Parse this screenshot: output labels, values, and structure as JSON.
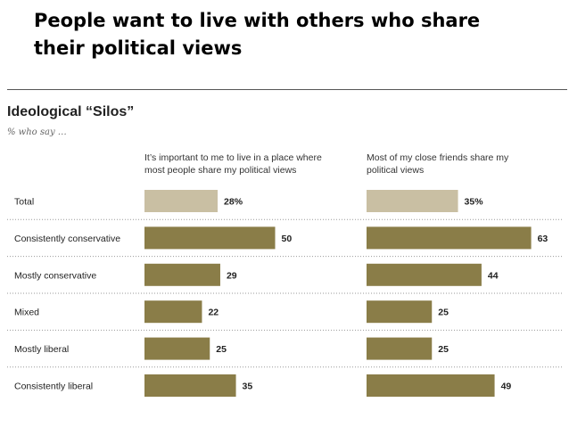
{
  "slide": {
    "title": "People want to live with others who share their political views"
  },
  "chart_data": {
    "type": "bar",
    "orientation": "horizontal",
    "title": "Ideological “Silos”",
    "subtitle": "% who say …",
    "categories": [
      "Total",
      "Consistently conservative",
      "Mostly conservative",
      "Mixed",
      "Mostly liberal",
      "Consistently liberal"
    ],
    "series": [
      {
        "name": "It’s important to me to live in a place where most people share my political views",
        "header_lines": [
          "It’s important to me to live in a place where",
          "most people share my political views"
        ],
        "values": [
          28,
          50,
          29,
          22,
          25,
          35
        ],
        "labels": [
          "28%",
          "50",
          "29",
          "22",
          "25",
          "35"
        ]
      },
      {
        "name": "Most of my close friends share my political views",
        "header_lines": [
          "Most of my close friends share my",
          "political views"
        ],
        "values": [
          35,
          63,
          44,
          25,
          25,
          49
        ],
        "labels": [
          "35%",
          "63",
          "44",
          "25",
          "25",
          "49"
        ]
      }
    ],
    "highlight_category": "Total",
    "colors": {
      "total_bar": "#c9bfa3",
      "bar": "#8a7d48",
      "divider": "#999999"
    },
    "xlim": [
      0,
      70
    ],
    "grid": false,
    "legend": "none"
  }
}
